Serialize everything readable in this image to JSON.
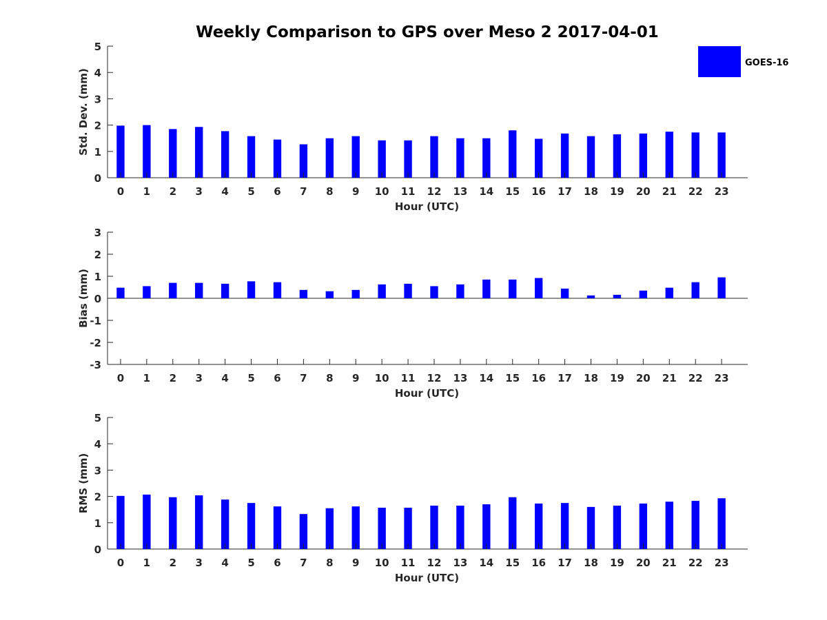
{
  "title": "Weekly Comparison to GPS over Meso 2 2017-04-01",
  "legend": {
    "label": "GOES-16",
    "color": "#0000FF"
  },
  "chart_data": [
    {
      "type": "bar",
      "name": "std-dev",
      "title": "",
      "xlabel": "Hour (UTC)",
      "ylabel": "Std. Dev. (mm)",
      "ylim": [
        0,
        5
      ],
      "yticks": [
        "0",
        "1",
        "2",
        "3",
        "4",
        "5"
      ],
      "categories": [
        "0",
        "1",
        "2",
        "3",
        "4",
        "5",
        "6",
        "7",
        "8",
        "9",
        "10",
        "11",
        "12",
        "13",
        "14",
        "15",
        "16",
        "17",
        "18",
        "19",
        "20",
        "21",
        "22",
        "23"
      ],
      "series": [
        {
          "name": "GOES-16",
          "color": "#0000FF",
          "values": [
            1.98,
            2.0,
            1.85,
            1.93,
            1.77,
            1.58,
            1.45,
            1.27,
            1.5,
            1.58,
            1.42,
            1.42,
            1.58,
            1.5,
            1.5,
            1.8,
            1.48,
            1.68,
            1.58,
            1.65,
            1.68,
            1.75,
            1.72,
            1.72
          ]
        }
      ]
    },
    {
      "type": "bar",
      "name": "bias",
      "title": "",
      "xlabel": "Hour (UTC)",
      "ylabel": "Bias (mm)",
      "ylim": [
        -3,
        3
      ],
      "yticks": [
        "-3",
        "-2",
        "-1",
        "0",
        "1",
        "2",
        "3"
      ],
      "categories": [
        "0",
        "1",
        "2",
        "3",
        "4",
        "5",
        "6",
        "7",
        "8",
        "9",
        "10",
        "11",
        "12",
        "13",
        "14",
        "15",
        "16",
        "17",
        "18",
        "19",
        "20",
        "21",
        "22",
        "23"
      ],
      "series": [
        {
          "name": "GOES-16",
          "color": "#0000FF",
          "values": [
            0.48,
            0.55,
            0.7,
            0.7,
            0.66,
            0.77,
            0.73,
            0.38,
            0.32,
            0.38,
            0.63,
            0.66,
            0.55,
            0.63,
            0.85,
            0.85,
            0.92,
            0.44,
            0.13,
            0.16,
            0.35,
            0.48,
            0.73,
            0.95
          ]
        }
      ]
    },
    {
      "type": "bar",
      "name": "rms",
      "title": "",
      "xlabel": "Hour (UTC)",
      "ylabel": "RMS (mm)",
      "ylim": [
        0,
        5
      ],
      "yticks": [
        "0",
        "1",
        "2",
        "3",
        "4",
        "5"
      ],
      "categories": [
        "0",
        "1",
        "2",
        "3",
        "4",
        "5",
        "6",
        "7",
        "8",
        "9",
        "10",
        "11",
        "12",
        "13",
        "14",
        "15",
        "16",
        "17",
        "18",
        "19",
        "20",
        "21",
        "22",
        "23"
      ],
      "series": [
        {
          "name": "GOES-16",
          "color": "#0000FF",
          "values": [
            2.02,
            2.07,
            1.97,
            2.04,
            1.88,
            1.75,
            1.62,
            1.33,
            1.55,
            1.62,
            1.57,
            1.57,
            1.65,
            1.65,
            1.7,
            1.97,
            1.73,
            1.75,
            1.6,
            1.65,
            1.73,
            1.8,
            1.83,
            1.93
          ]
        }
      ]
    }
  ]
}
